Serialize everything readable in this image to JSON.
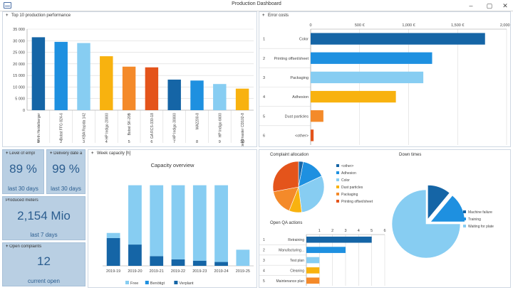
{
  "window": {
    "title": "Production Dashboard",
    "min": "–",
    "max": "▢",
    "close": "✕"
  },
  "colors": {
    "dark_blue": "#1565a6",
    "mid_blue": "#1e90e0",
    "light_blue": "#87cdf2",
    "yellow": "#f8b20f",
    "orange": "#f48a2a",
    "red_orange": "#e4541b",
    "kpi_bg": "#b9cfe3",
    "kpi_text": "#2b5d8f"
  },
  "production": {
    "title": "Top 10 production performance",
    "chart_data": {
      "type": "bar",
      "categories": [
        "1",
        "2",
        "3",
        "4",
        "5",
        "6",
        "7",
        "8",
        "9",
        "10"
      ],
      "bar_labels": [
        "Wirth Heidelberger",
        "Bobst FFG 824-6",
        "KBA Rapida 142",
        "HP Indigo 20000",
        "Bobst SK-20B",
        "GA RCS-330-18",
        "HP Indigo 30000",
        "MA2200-8",
        "HP Indigo 6600",
        "Speedmaster CD102-8"
      ],
      "values": [
        31500,
        29500,
        29000,
        23300,
        18800,
        18500,
        13200,
        12800,
        11300,
        9300
      ],
      "colors": [
        "#1565a6",
        "#1e90e0",
        "#87cdf2",
        "#f8b20f",
        "#f48a2a",
        "#e4541b",
        "#1565a6",
        "#1e90e0",
        "#87cdf2",
        "#f8b20f"
      ],
      "yticks": [
        "35 000",
        "30 000",
        "25 000",
        "20 000",
        "15 000",
        "10 000",
        "5 000",
        "0"
      ],
      "ylim": [
        0,
        35000
      ]
    }
  },
  "errors": {
    "title": "Error costs",
    "chart_data": {
      "type": "bar",
      "orientation": "horizontal",
      "categories": [
        "Color",
        "Printing offset/sheet",
        "Packaging",
        "Adhesion",
        "Dust particles",
        "<other>"
      ],
      "row_numbers": [
        "1",
        "2",
        "3",
        "4",
        "5",
        "6"
      ],
      "values": [
        1780,
        1240,
        1150,
        870,
        130,
        30
      ],
      "colors": [
        "#1565a6",
        "#1e90e0",
        "#87cdf2",
        "#f8b20f",
        "#f48a2a",
        "#e4541b"
      ],
      "xticks": [
        "0",
        "500 €",
        "1,000 €",
        "1,500 €",
        "2,000 €"
      ],
      "xlim": [
        0,
        2000
      ]
    }
  },
  "kpis": {
    "level": {
      "header": "Level of empl",
      "value": "89 %",
      "sub": "last 30 days"
    },
    "delivery": {
      "header": "Delivery date a",
      "value": "99 %",
      "sub": "last 30 days"
    },
    "meters": {
      "header": "Produced meters",
      "value": "2,154 Mio",
      "sub": "last 7 days"
    },
    "complaints": {
      "header": "Open complaints",
      "value": "12",
      "sub": "current open"
    }
  },
  "capacity": {
    "header": "Week capacity [h]",
    "chart_data": {
      "type": "bar",
      "stacked": true,
      "title": "Capacity overview",
      "categories": [
        "2019-19",
        "2019-20",
        "2019-21",
        "2019-22",
        "2019-23",
        "2019-24",
        "2019-25"
      ],
      "series": [
        {
          "name": "Verplant",
          "color": "#1565a6",
          "values": [
            430,
            330,
            150,
            100,
            80,
            60,
            0
          ]
        },
        {
          "name": "Benötigt",
          "color": "#1e90e0",
          "values": [
            0,
            0,
            0,
            0,
            0,
            0,
            0
          ]
        },
        {
          "name": "Free",
          "color": "#87cdf2",
          "values": [
            80,
            920,
            1100,
            1150,
            1170,
            1190,
            250
          ]
        }
      ],
      "legend_order": [
        "Free",
        "Benötigt",
        "Verplant"
      ],
      "ylim": [
        0,
        1400
      ]
    }
  },
  "complaint_allocation": {
    "title": "Complaint allocation",
    "chart_data": {
      "type": "pie",
      "categories": [
        "<other>",
        "Adhesion",
        "Color",
        "Dust particles",
        "Packaging",
        "Printing offset/sheet"
      ],
      "values": [
        3,
        15,
        30,
        8,
        16,
        28
      ],
      "colors": [
        "#1565a6",
        "#1e90e0",
        "#87cdf2",
        "#f8b20f",
        "#f48a2a",
        "#e4541b"
      ]
    }
  },
  "downtimes": {
    "title": "Down times",
    "chart_data": {
      "type": "pie",
      "categories": [
        "Machine failure",
        "Training",
        "Waiting for plate"
      ],
      "values": [
        11,
        14,
        75
      ],
      "colors": [
        "#1565a6",
        "#1e90e0",
        "#87cdf2"
      ]
    }
  },
  "qa": {
    "title": "Open QA actions",
    "chart_data": {
      "type": "bar",
      "orientation": "horizontal",
      "categories": [
        "Retraining",
        "Manufacturing...",
        "Test plan",
        "Cleaning",
        "Maintenance plan"
      ],
      "row_numbers": [
        "1",
        "2",
        "3",
        "4",
        "5"
      ],
      "values": [
        5,
        3,
        1,
        1,
        1
      ],
      "colors": [
        "#1565a6",
        "#1e90e0",
        "#87cdf2",
        "#f8b20f",
        "#f48a2a"
      ],
      "xticks": [
        "1",
        "2",
        "3",
        "4",
        "5",
        "6"
      ],
      "xlim": [
        0,
        6
      ]
    }
  }
}
